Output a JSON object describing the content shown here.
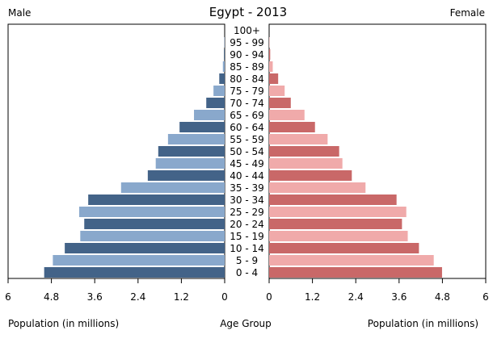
{
  "chart_data": {
    "type": "bar",
    "title": "Egypt - 2013",
    "left_label": "Male",
    "right_label": "Female",
    "xlabel_left": "Population (in millions)",
    "xlabel_center": "Age Group",
    "xlabel_right": "Population (in millions)",
    "xlim": [
      0,
      6
    ],
    "ticks": [
      "6",
      "4.8",
      "3.6",
      "2.4",
      "1.2",
      "0",
      "0",
      "1.2",
      "2.4",
      "3.6",
      "4.8",
      "6"
    ],
    "tick_values": [
      6,
      4.8,
      3.6,
      2.4,
      1.2,
      0,
      0,
      1.2,
      2.4,
      3.6,
      4.8,
      6
    ],
    "categories": [
      "0 - 4",
      "5 - 9",
      "10 - 14",
      "15 - 19",
      "20 - 24",
      "25 - 29",
      "30 - 34",
      "35 - 39",
      "40 - 44",
      "45 - 49",
      "50 - 54",
      "55 - 59",
      "60 - 64",
      "65 - 69",
      "70 - 74",
      "75 - 79",
      "80 - 84",
      "85 - 89",
      "90 - 94",
      "95 - 99",
      "100+"
    ],
    "male": [
      5.0,
      4.76,
      4.43,
      4.0,
      3.89,
      4.03,
      3.78,
      2.87,
      2.13,
      1.91,
      1.84,
      1.57,
      1.25,
      0.85,
      0.51,
      0.31,
      0.15,
      0.05,
      0.02,
      0.01,
      0.0
    ],
    "female": [
      4.79,
      4.56,
      4.15,
      3.84,
      3.68,
      3.8,
      3.53,
      2.67,
      2.29,
      2.03,
      1.94,
      1.62,
      1.27,
      0.98,
      0.6,
      0.43,
      0.25,
      0.1,
      0.03,
      0.01,
      0.0
    ],
    "colors": {
      "male_dark": "#436388",
      "male_light": "#89a8cc",
      "female_dark": "#c96868",
      "female_light": "#f0aaaa"
    }
  }
}
